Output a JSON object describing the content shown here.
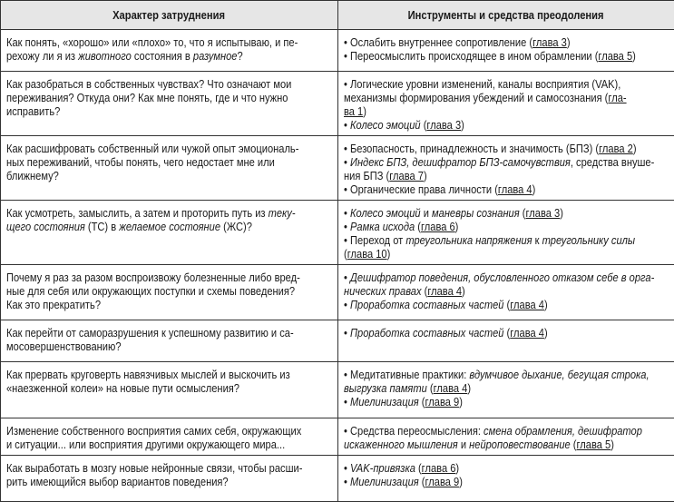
{
  "header": {
    "col1": "Характер затруднения",
    "col2": "Инструменты и средства преодоления"
  },
  "rows": [
    {
      "q": [
        [
          [
            "Как понять, «хорошо» или «плохо» то, что я испытываю, и пе-",
            ""
          ]
        ],
        [
          [
            "рехожу ли я из ",
            ""
          ],
          [
            "животного",
            "i"
          ],
          [
            " состояния в ",
            ""
          ],
          [
            "разумное",
            "i"
          ],
          [
            "?",
            ""
          ]
        ]
      ],
      "a": [
        [
          [
            "• Ослабить внутреннее сопротивление (",
            ""
          ],
          [
            "глава 3",
            "u"
          ],
          [
            ")",
            ""
          ]
        ],
        [
          [
            "• Переосмыслить происходящее в ином обрамлении (",
            ""
          ],
          [
            "глава 5",
            "u"
          ],
          [
            ")",
            ""
          ]
        ]
      ]
    },
    {
      "q": [
        [
          [
            "Как разобраться в собственных чувствах? Что означают мои",
            ""
          ]
        ],
        [
          [
            "переживания? Откуда они? Как мне понять, где и что нужно",
            ""
          ]
        ],
        [
          [
            "исправить?",
            ""
          ]
        ]
      ],
      "a": [
        [
          [
            "• Логические уровни изменений, каналы восприятия (VAK),",
            ""
          ]
        ],
        [
          [
            "механизмы формирования убеждений и самосознания (",
            ""
          ],
          [
            "гла-",
            "u"
          ]
        ],
        [
          [
            "ва 1",
            "u"
          ],
          [
            ")",
            ""
          ]
        ],
        [
          [
            "• ",
            ""
          ],
          [
            "Колесо эмоций",
            "i"
          ],
          [
            " (",
            ""
          ],
          [
            "глава 3",
            "u"
          ],
          [
            ")",
            ""
          ]
        ]
      ]
    },
    {
      "q": [
        [
          [
            "Как расшифровать собственный или чужой опыт эмоциональ-",
            ""
          ]
        ],
        [
          [
            "ных переживаний, чтобы понять, чего недостает мне или",
            ""
          ]
        ],
        [
          [
            "ближнему?",
            ""
          ]
        ]
      ],
      "a": [
        [
          [
            "• Безопасность, принадлежность и значимость (БПЗ) (",
            ""
          ],
          [
            "глава 2",
            "u"
          ],
          [
            ")",
            ""
          ]
        ],
        [
          [
            "• ",
            ""
          ],
          [
            "Индекс БПЗ, дешифратор БПЗ-самочувствия",
            "i"
          ],
          [
            ", средства внуше-",
            ""
          ]
        ],
        [
          [
            "ния БПЗ (",
            ""
          ],
          [
            "глава 7",
            "u"
          ],
          [
            ")",
            ""
          ]
        ],
        [
          [
            "• Органические права личности (",
            ""
          ],
          [
            "глава 4",
            "u"
          ],
          [
            ")",
            ""
          ]
        ]
      ]
    },
    {
      "q": [
        [
          [
            "Как усмотреть, замыслить, а затем и проторить путь из ",
            ""
          ],
          [
            "теку-",
            "i"
          ]
        ],
        [
          [
            "щего состояния",
            "i"
          ],
          [
            " (ТС) в ",
            ""
          ],
          [
            "желаемое состояние",
            "i"
          ],
          [
            " (ЖС)?",
            ""
          ]
        ]
      ],
      "a": [
        [
          [
            "• ",
            ""
          ],
          [
            "Колесо эмоций",
            "i"
          ],
          [
            " и ",
            ""
          ],
          [
            "маневры сознания",
            "i"
          ],
          [
            " (",
            ""
          ],
          [
            "глава 3",
            "u"
          ],
          [
            ")",
            ""
          ]
        ],
        [
          [
            "• ",
            ""
          ],
          [
            "Рамка исхода",
            "i"
          ],
          [
            " (",
            ""
          ],
          [
            "глава 6",
            "u"
          ],
          [
            ")",
            ""
          ]
        ],
        [
          [
            "• Переход от ",
            ""
          ],
          [
            "треугольника напряжения",
            "i"
          ],
          [
            " к ",
            ""
          ],
          [
            "треугольнику силы",
            "i"
          ]
        ],
        [
          [
            "(",
            ""
          ],
          [
            "глава 10",
            "u"
          ],
          [
            ")",
            ""
          ]
        ]
      ]
    },
    {
      "q": [
        [
          [
            "Почему я раз за разом воспроизвожу болезненные либо вред-",
            ""
          ]
        ],
        [
          [
            "ные для себя или окружающих поступки и схемы поведения?",
            ""
          ]
        ],
        [
          [
            "Как это прекратить?",
            ""
          ]
        ]
      ],
      "a": [
        [
          [
            "• ",
            ""
          ],
          [
            "Дешифратор поведения, обусловленного отказом себе в орга-",
            "i"
          ]
        ],
        [
          [
            "нических правах",
            "i"
          ],
          [
            " (",
            ""
          ],
          [
            "глава 4",
            "u"
          ],
          [
            ")",
            ""
          ]
        ],
        [
          [
            "• ",
            ""
          ],
          [
            "Проработка составных частей",
            "i"
          ],
          [
            " (",
            ""
          ],
          [
            "глава 4",
            "u"
          ],
          [
            ")",
            ""
          ]
        ]
      ]
    },
    {
      "q": [
        [
          [
            "Как перейти от саморазрушения к успешному развитию и са-",
            ""
          ]
        ],
        [
          [
            "мосовершенствованию?",
            ""
          ]
        ]
      ],
      "a": [
        [
          [
            "• ",
            ""
          ],
          [
            "Проработка составных частей",
            "i"
          ],
          [
            " (",
            ""
          ],
          [
            "глава 4",
            "u"
          ],
          [
            ")",
            ""
          ]
        ]
      ]
    },
    {
      "q": [
        [
          [
            "Как прервать круговерть навязчивых мыслей и выскочить из",
            ""
          ]
        ],
        [
          [
            "«наезженной колеи» на новые пути осмысления?",
            ""
          ]
        ]
      ],
      "a": [
        [
          [
            "• Медитативные практики: ",
            ""
          ],
          [
            "вдумчивое дыхание, бегущая строка,",
            "i"
          ]
        ],
        [
          [
            "выгрузка памяти",
            "i"
          ],
          [
            " (",
            ""
          ],
          [
            "глава 4",
            "u"
          ],
          [
            ")",
            ""
          ]
        ],
        [
          [
            "• ",
            ""
          ],
          [
            "Миелинизация",
            "i"
          ],
          [
            " (",
            ""
          ],
          [
            "глава 9",
            "u"
          ],
          [
            ")",
            ""
          ]
        ]
      ]
    },
    {
      "q": [
        [
          [
            "Изменение собственного восприятия самих себя, окружающих",
            ""
          ]
        ],
        [
          [
            "и ситуации... или восприятия другими окружающего мира...",
            ""
          ]
        ]
      ],
      "a": [
        [
          [
            "• Средства переосмысления: ",
            ""
          ],
          [
            "смена обрамления, дешифратор",
            "i"
          ]
        ],
        [
          [
            "искаженного мышления",
            "i"
          ],
          [
            " и ",
            ""
          ],
          [
            "нейроповествование",
            "i"
          ],
          [
            " (",
            ""
          ],
          [
            "глава 5",
            "u"
          ],
          [
            ")",
            ""
          ]
        ]
      ]
    },
    {
      "q": [
        [
          [
            "Как выработать в мозгу новые нейронные связи, чтобы расши-",
            ""
          ]
        ],
        [
          [
            "рить имеющийся выбор вариантов поведения?",
            ""
          ]
        ]
      ],
      "a": [
        [
          [
            "• ",
            ""
          ],
          [
            "VAK-привязка",
            "i"
          ],
          [
            " (",
            ""
          ],
          [
            "глава 6",
            "u"
          ],
          [
            ")",
            ""
          ]
        ],
        [
          [
            "• ",
            ""
          ],
          [
            "Миелинизация",
            "i"
          ],
          [
            " (",
            ""
          ],
          [
            "глава 9",
            "u"
          ],
          [
            ")",
            ""
          ]
        ]
      ]
    }
  ]
}
